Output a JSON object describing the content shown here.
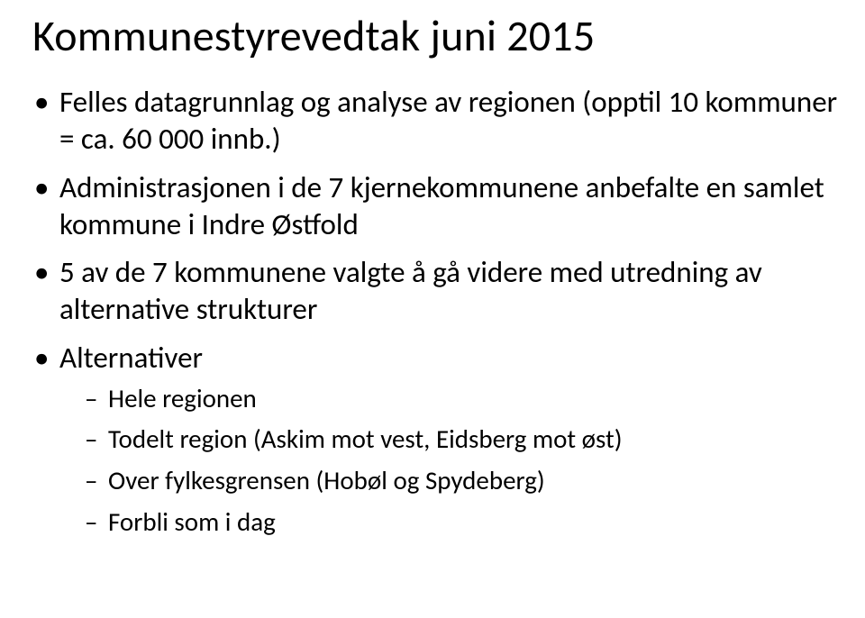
{
  "title": "Kommunestyrevedtak juni 2015",
  "bullets": [
    {
      "text": "Felles datagrunnlag og analyse av regionen (opptil 10  kommuner = ca. 60 000 innb.)"
    },
    {
      "text": "Administrasjonen i de 7 kjernekommunene anbefalte en samlet kommune i Indre Østfold"
    },
    {
      "text": "5 av de 7 kommunene valgte å gå videre med utredning av alternative strukturer"
    },
    {
      "text": "Alternativer",
      "sub": [
        "Hele regionen",
        "Todelt region (Askim mot vest, Eidsberg mot øst)",
        "Over fylkesgrensen (Hobøl og Spydeberg)",
        "Forbli som i dag"
      ]
    }
  ]
}
